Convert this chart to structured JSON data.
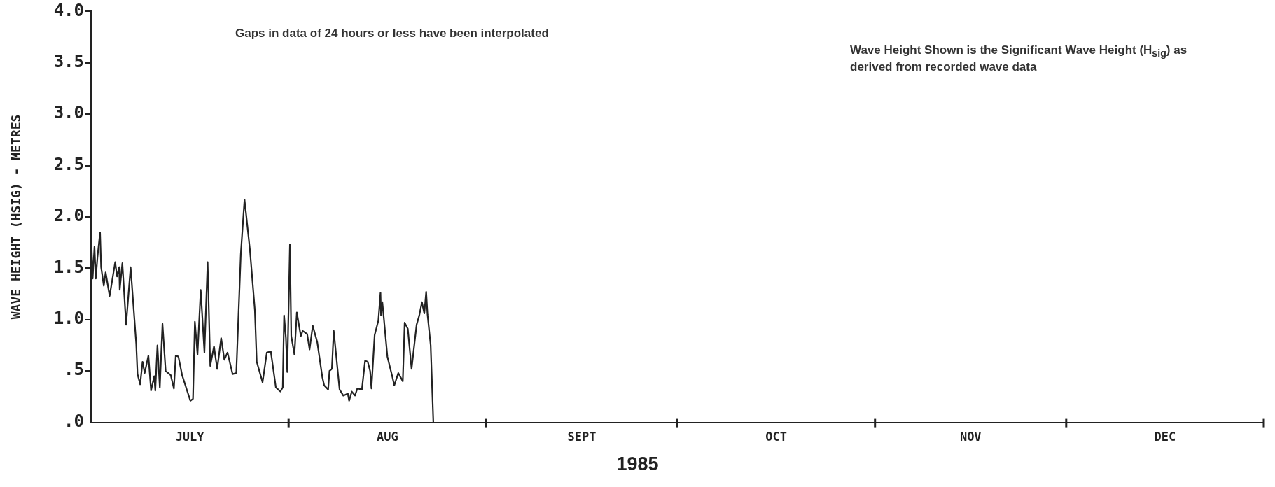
{
  "chart_data": {
    "type": "line",
    "xlabel": "1985",
    "ylabel": "WAVE HEIGHT (HSIG) - METRES",
    "annotations": [
      "Gaps in data of 24 hours or less have been interpolated",
      "Wave Height Shown is the Significant Wave Height (H$_{sig}$) as derived from recorded wave data"
    ],
    "x": [
      "1985-07-01T02:00",
      "1985-07-01T06:00",
      "1985-07-01T13:00",
      "1985-07-01T18:00",
      "1985-07-02T00:00",
      "1985-07-02T10:00",
      "1985-07-02T14:00",
      "1985-07-03T00:00",
      "1985-07-03T07:00",
      "1985-07-03T22:00",
      "1985-07-04T19:00",
      "1985-07-05T02:00",
      "1985-07-05T10:00",
      "1985-07-05T12:00",
      "1985-07-05T22:00",
      "1985-07-06T12:00",
      "1985-07-07T05:00",
      "1985-07-08T02:00",
      "1985-07-08T07:00",
      "1985-07-08T17:00",
      "1985-07-09T02:00",
      "1985-07-09T10:00",
      "1985-07-10T00:00",
      "1985-07-10T10:00",
      "1985-07-10T22:00",
      "1985-07-11T02:00",
      "1985-07-11T10:00",
      "1985-07-11T19:00",
      "1985-07-12T05:00",
      "1985-07-12T17:00",
      "1985-07-13T12:00",
      "1985-07-14T00:00",
      "1985-07-14T07:00",
      "1985-07-14T17:00",
      "1985-07-15T07:00",
      "1985-07-16T14:00",
      "1985-07-17T00:00",
      "1985-07-17T07:00",
      "1985-07-17T17:00",
      "1985-07-18T05:00",
      "1985-07-18T19:00",
      "1985-07-19T07:00",
      "1985-07-19T17:00",
      "1985-07-20T07:00",
      "1985-07-20T19:00",
      "1985-07-21T10:00",
      "1985-07-21T22:00",
      "1985-07-22T10:00",
      "1985-07-23T05:00",
      "1985-07-23T19:00",
      "1985-07-24T12:00",
      "1985-07-25T02:00",
      "1985-07-25T22:00",
      "1985-07-26T17:00",
      "1985-07-27T00:00",
      "1985-07-27T22:00",
      "1985-07-28T14:00",
      "1985-07-29T05:00",
      "1985-07-30T00:00",
      "1985-07-30T17:00",
      "1985-07-31T02:00",
      "1985-07-31T07:00",
      "1985-07-31T14:00",
      "1985-07-31T19:00",
      "1985-08-01T05:00",
      "1985-08-01T10:00",
      "1985-08-01T22:00",
      "1985-08-02T07:00",
      "1985-08-02T22:00",
      "1985-08-03T05:00",
      "1985-08-03T22:00",
      "1985-08-04T07:00",
      "1985-08-04T19:00",
      "1985-08-05T12:00",
      "1985-08-06T07:00",
      "1985-08-06T14:00",
      "1985-08-07T05:00",
      "1985-08-07T10:00",
      "1985-08-07T19:00",
      "1985-08-08T02:00",
      "1985-08-09T00:00",
      "1985-08-09T14:00",
      "1985-08-10T07:00",
      "1985-08-10T12:00",
      "1985-08-10T22:00",
      "1985-08-11T10:00",
      "1985-08-11T19:00",
      "1985-08-12T12:00",
      "1985-08-13T00:00",
      "1985-08-13T10:00",
      "1985-08-13T19:00",
      "1985-08-14T00:00",
      "1985-08-14T12:00",
      "1985-08-15T02:00",
      "1985-08-15T10:00",
      "1985-08-15T12:00",
      "1985-08-15T17:00",
      "1985-08-16T12:00",
      "1985-08-17T07:00",
      "1985-08-17T14:00",
      "1985-08-18T05:00",
      "1985-08-18T22:00",
      "1985-08-19T05:00",
      "1985-08-19T17:00",
      "1985-08-20T07:00",
      "1985-08-21T02:00",
      "1985-08-21T12:00",
      "1985-08-21T22:00",
      "1985-08-22T07:00",
      "1985-08-22T14:00",
      "1985-08-22T19:00",
      "1985-08-23T07:00",
      "1985-08-23T17:00"
    ],
    "values": [
      1.71,
      1.4,
      1.71,
      1.4,
      1.6,
      1.85,
      1.51,
      1.33,
      1.46,
      1.23,
      1.56,
      1.42,
      1.51,
      1.29,
      1.55,
      0.95,
      1.51,
      0.77,
      0.47,
      0.37,
      0.59,
      0.48,
      0.65,
      0.31,
      0.45,
      0.31,
      0.75,
      0.34,
      0.96,
      0.5,
      0.46,
      0.33,
      0.65,
      0.64,
      0.46,
      0.21,
      0.23,
      0.98,
      0.66,
      1.29,
      0.68,
      1.56,
      0.55,
      0.74,
      0.52,
      0.82,
      0.61,
      0.68,
      0.47,
      0.48,
      1.64,
      2.17,
      1.69,
      1.09,
      0.59,
      0.39,
      0.68,
      0.69,
      0.34,
      0.3,
      0.34,
      1.04,
      0.82,
      0.49,
      1.73,
      0.84,
      0.66,
      1.07,
      0.84,
      0.89,
      0.86,
      0.71,
      0.94,
      0.78,
      0.44,
      0.36,
      0.32,
      0.5,
      0.52,
      0.89,
      0.32,
      0.26,
      0.28,
      0.21,
      0.3,
      0.26,
      0.33,
      0.32,
      0.6,
      0.59,
      0.5,
      0.33,
      0.85,
      0.99,
      1.26,
      1.04,
      1.17,
      0.64,
      0.44,
      0.36,
      0.48,
      0.4,
      0.97,
      0.91,
      0.52,
      0.95,
      1.04,
      1.17,
      1.06,
      1.27,
      1.05,
      0.75,
      0.0
    ],
    "color": "#222222",
    "marker": "none",
    "line_style": "solid",
    "legend": false,
    "grid": false,
    "xlim": [
      "1985-07-01",
      "1986-01-01"
    ],
    "xticks": [
      {
        "value": "1985-07-16T12:00",
        "label": "JULY"
      },
      {
        "value": "1985-08-01",
        "label": null
      },
      {
        "value": "1985-08-16T12:00",
        "label": "AUG"
      },
      {
        "value": "1985-09-01",
        "label": null
      },
      {
        "value": "1985-09-16",
        "label": "SEPT"
      },
      {
        "value": "1985-10-01",
        "label": null
      },
      {
        "value": "1985-10-16T12:00",
        "label": "OCT"
      },
      {
        "value": "1985-11-01",
        "label": null
      },
      {
        "value": "1985-11-16",
        "label": "NOV"
      },
      {
        "value": "1985-12-01",
        "label": null
      },
      {
        "value": "1985-12-16T12:00",
        "label": "DEC"
      },
      {
        "value": "1986-01-01",
        "label": null
      }
    ],
    "ylim": [
      0,
      4
    ],
    "yticks": [
      {
        "value": 0,
        "label": ".0"
      },
      {
        "value": 0.5,
        "label": ".5"
      },
      {
        "value": 1,
        "label": "1.0"
      },
      {
        "value": 1.5,
        "label": "1.5"
      },
      {
        "value": 2,
        "label": "2.0"
      },
      {
        "value": 2.5,
        "label": "2.5"
      },
      {
        "value": 3,
        "label": "3.0"
      },
      {
        "value": 3.5,
        "label": "3.5"
      },
      {
        "value": 4,
        "label": "4.0"
      }
    ]
  }
}
